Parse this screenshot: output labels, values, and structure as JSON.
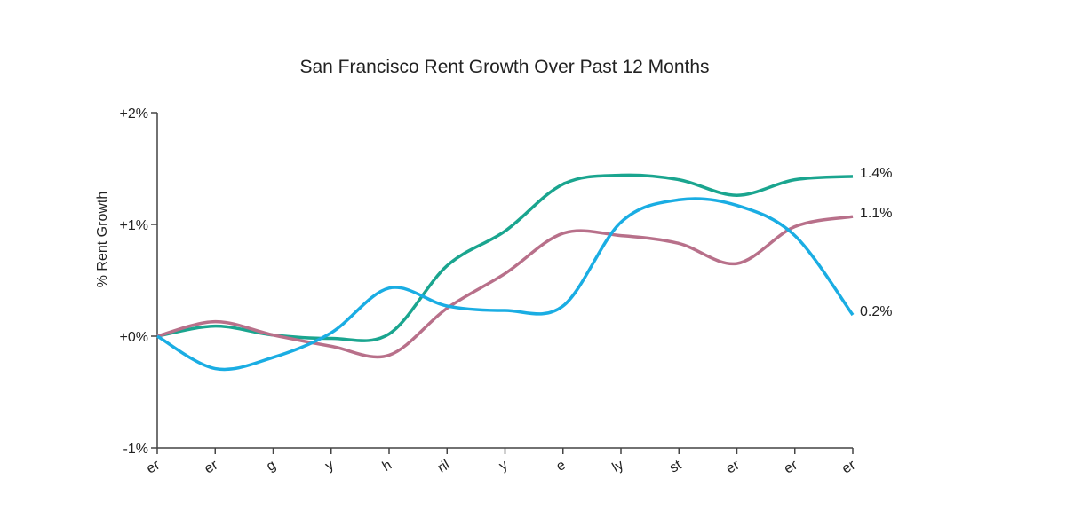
{
  "chart_data": {
    "type": "line",
    "title": "San Francisco Rent Growth Over Past 12 Months",
    "y_label": "% Rent Growth",
    "categories": [
      "er",
      "er",
      "g",
      "y",
      "h",
      "ril",
      "y",
      "e",
      "ly",
      "st",
      "er",
      "er",
      "er"
    ],
    "ylim": [
      -1,
      2
    ],
    "yticks": [
      {
        "value": 2,
        "label": "+2%"
      },
      {
        "value": 1,
        "label": "+1%"
      },
      {
        "value": 0,
        "label": "+0%"
      },
      {
        "value": -1,
        "label": "-1%"
      }
    ],
    "series": [
      {
        "color": "#1aa58f",
        "values": [
          0,
          0.09,
          0.01,
          -0.02,
          0.02,
          0.63,
          0.94,
          1.36,
          1.44,
          1.4,
          1.26,
          1.4,
          1.43
        ],
        "value_labels": [
          null,
          null,
          null,
          null,
          null,
          null,
          null,
          null,
          null,
          null,
          null,
          null,
          "1.4%"
        ]
      },
      {
        "color": "#b8708a",
        "values": [
          0,
          0.13,
          0.01,
          -0.09,
          -0.17,
          0.25,
          0.56,
          0.92,
          0.9,
          0.83,
          0.65,
          0.98,
          1.07
        ],
        "value_labels": [
          null,
          null,
          null,
          null,
          null,
          null,
          null,
          null,
          null,
          null,
          null,
          null,
          "1.1%"
        ]
      },
      {
        "color": "#1aade3",
        "values": [
          0,
          -0.29,
          -0.19,
          0.03,
          0.43,
          0.27,
          0.23,
          0.27,
          1.02,
          1.22,
          1.17,
          0.9,
          0.19
        ],
        "value_labels": [
          null,
          null,
          null,
          null,
          null,
          null,
          null,
          null,
          null,
          null,
          null,
          null,
          "0.2%"
        ]
      }
    ]
  }
}
